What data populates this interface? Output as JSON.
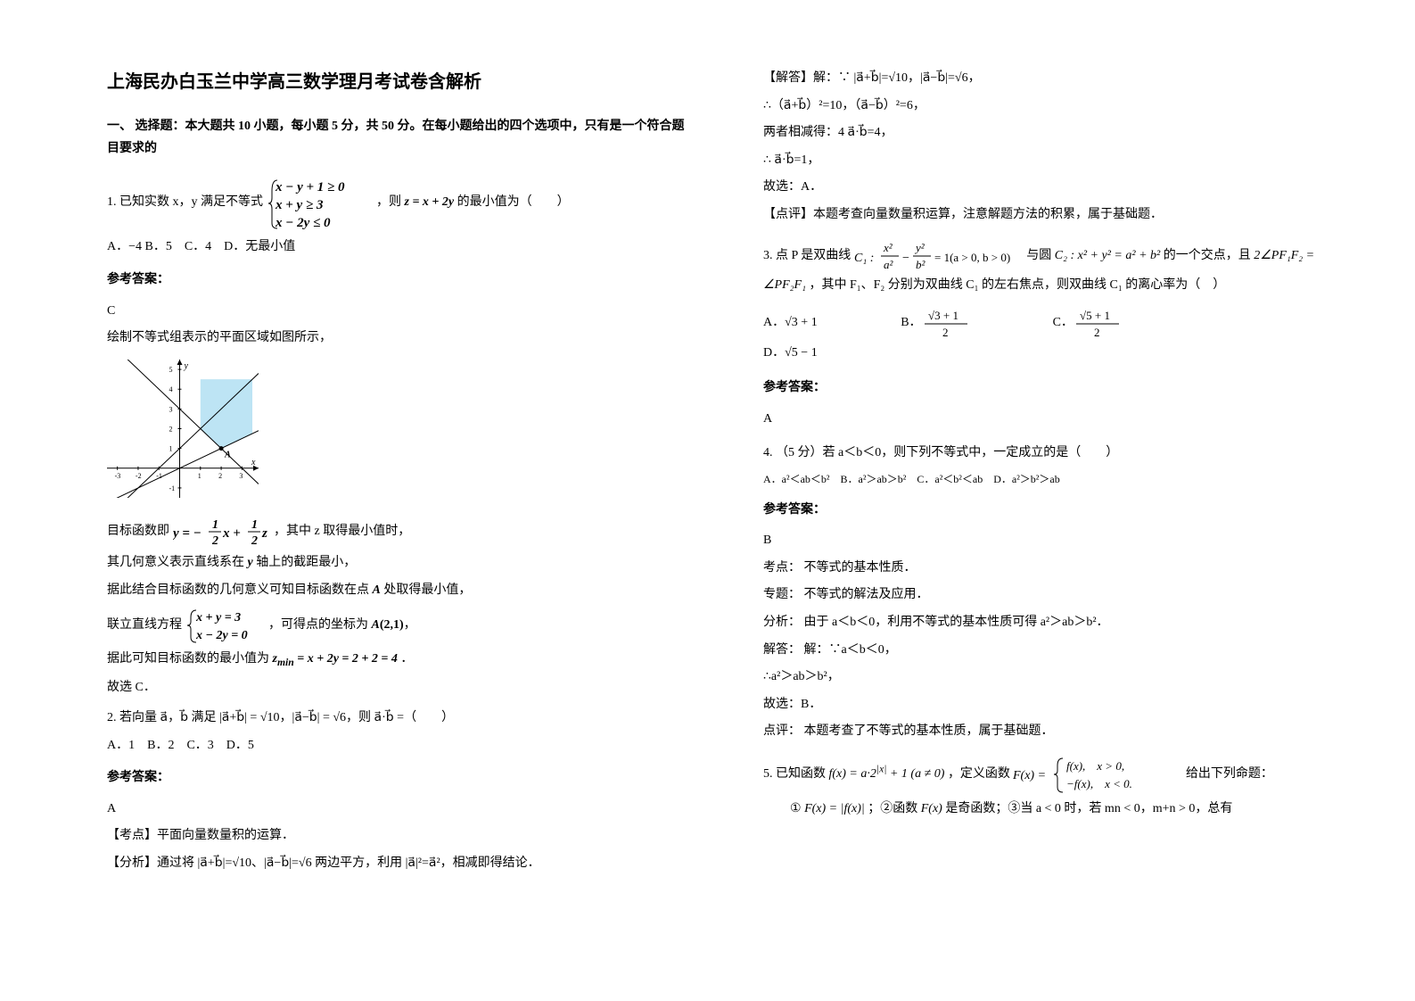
{
  "title": "上海民办白玉兰中学高三数学理月考试卷含解析",
  "section1_head": "一、 选择题：本大题共 10 小题，每小题 5 分，共 50 分。在每小题给出的四个选项中，只有是一个符合题目要求的",
  "q1": {
    "pre": "1. 已知实数 x，y 满足不等式",
    "sys_l1": "x − y + 1 ≥ 0",
    "sys_l2": "x + y ≥ 3",
    "sys_l3": "x − 2y ≤ 0",
    "mid": "，则",
    "z": "z = x + 2y",
    "post": "的最小值为（　　）",
    "opts": "A．−4  B．5　C．4　D．无最小值",
    "ans_label": "参考答案：",
    "ans": "C",
    "exp1": "绘制不等式组表示的平面区域如图所示，",
    "exp2_pre": "目标函数即",
    "exp2_formula": "y = −½x + ½z",
    "exp2_post": "，其中 z 取得最小值时，",
    "exp3": "其几何意义表示直线系在 y 轴上的截距最小，",
    "exp4": "据此结合目标函数的几何意义可知目标函数在点 A 处取得最小值，",
    "exp5_pre": "联立直线方程",
    "exp5_sys1": "x + y = 3",
    "exp5_sys2": "x − 2y = 0",
    "exp5_post": "，可得点的坐标为 A(2,1)，",
    "exp6_pre": "据此可知目标函数的最小值为",
    "exp6_formula": "z_min = x + 2y = 2 + 2 = 4",
    "exp6_post": "．",
    "exp7": "故选 C．",
    "graph": {
      "width": 170,
      "height": 155,
      "bg": "#ffffff",
      "axis_color": "#000000",
      "region_fill": "#87ceeb",
      "line_color": "#000000",
      "x_ticks": [
        -3,
        -2,
        -1,
        1,
        2,
        3
      ],
      "y_ticks": [
        -1,
        1,
        2,
        3,
        4,
        5
      ],
      "xmin": -3.5,
      "xmax": 3.8,
      "ymin": -1.5,
      "ymax": 5.5
    }
  },
  "q2": {
    "text_pre": "2. 若向量 a⃗，b⃗ 满足 |a⃗+b⃗| = √10，|a⃗−b⃗| = √6，则 a⃗·b⃗ =（　　）",
    "opts": "A．1　B．2　C．3　D．5",
    "ans_label": "参考答案：",
    "ans": "A",
    "kd": "【考点】平面向量数量积的运算．",
    "fx": "【分析】通过将 |a⃗+b⃗|=√10、|a⃗−b⃗|=√6 两边平方，利用 |a⃗|²=a⃗²，相减即得结论．",
    "jd1": "【解答】解：∵ |a⃗+b⃗|=√10，|a⃗−b⃗|=√6，",
    "jd2": "∴（a⃗+b⃗）²=10，（a⃗−b⃗）²=6，",
    "jd3": "两者相减得：4 a⃗·b⃗=4，",
    "jd4": "∴ a⃗·b⃗=1，",
    "jd5": "故选：A．",
    "dp": "【点评】本题考查向量数量积运算，注意解题方法的积累，属于基础题．"
  },
  "q3": {
    "pre": "3. 点 P 是双曲线",
    "c1": "C₁: x²/a² − y²/b² = 1 (a>0, b>0)",
    "mid": "与圆",
    "c2": "C₂: x² + y² = a² + b²",
    "post1": "的一个交点，且",
    "ang": "2∠PF₁F₂ = ∠PF₂F₁",
    "post2": "，其中 F₁、F₂ 分别为双曲线 C₁ 的左右焦点，则双曲线 C₁ 的离心率为（　）",
    "optA": "√3 + 1",
    "optB_num": "√3 + 1",
    "optB_den": "2",
    "optC_num": "√5 + 1",
    "optC_den": "2",
    "optD": "√5 − 1",
    "ans_label": "参考答案：",
    "ans": "A"
  },
  "q4": {
    "text": "4. （5 分）若 a＜b＜0，则下列不等式中，一定成立的是（　　）",
    "opts": "A．a²＜ab＜b²　B．a²＞ab＞b²　C．a²＜b²＜ab　D．a²＞b²＞ab",
    "ans_label": "参考答案：",
    "ans": "B",
    "l1": "考点：  不等式的基本性质．",
    "l2": "专题：  不等式的解法及应用．",
    "l3": "分析：  由于 a＜b＜0，利用不等式的基本性质可得 a²＞ab＞b²．",
    "l4": "解答：  解：∵a＜b＜0，",
    "l5": "∴a²＞ab＞b²，",
    "l6": "故选：B．",
    "l7": "点评：  本题考查了不等式的基本性质，属于基础题．"
  },
  "q5": {
    "pre": "5. 已知函数",
    "f": "f(x) = a·2^|x| + 1 (a ≠ 0)",
    "mid": "，定义函数",
    "F_top": "f(x),　x > 0,",
    "F_bot": "−f(x),　x < 0.",
    "post": "给出下列命题：",
    "l2_1": "①",
    "l2_f1": "F(x) = |f(x)|",
    "l2_2": "；②函数",
    "l2_f2": "F(x)",
    "l2_3": "是奇函数；③当 a < 0 时，若 mn < 0，m+n > 0，总有"
  }
}
